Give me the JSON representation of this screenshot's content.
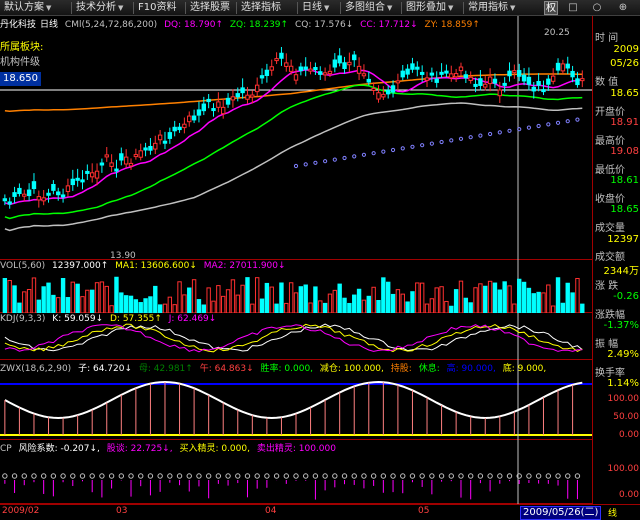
{
  "toolbar": {
    "items": [
      "默认方案",
      "技术分析",
      "F10资料",
      "选择股票",
      "选择指标",
      "日线",
      "多图组合",
      "图形叠加",
      "常用指标"
    ],
    "right_icons": [
      "权",
      "□",
      "○",
      "⊕"
    ]
  },
  "main": {
    "stock_name": "丹化科技",
    "period": "日线",
    "indicator": "CMl(5,24,72,86,200)",
    "dq": "DQ: 18.790↑",
    "zq": "ZQ: 18.239↑",
    "cq": "CQ: 17.576↓",
    "cc": "CC: 17.712↓",
    "zy": "ZY: 18.859↑",
    "sector_label": "所属板块:",
    "sector_value": "机构件级",
    "current_price": "18.650",
    "high_mark": "20.25",
    "low_mark": "13.90"
  },
  "vol": {
    "name": "VOL(5,60)",
    "v": "12397.000↑",
    "ma1": "MA1: 13606.600↓",
    "ma2": "MA2: 27011.900↓"
  },
  "kdj": {
    "name": "KDJ(9,3,3)",
    "k": "K: 59.059↓",
    "d": "D: 57.355↑",
    "j": "J: 62.469↓"
  },
  "zwx": {
    "name": "ZWX(18,6,2,90)",
    "zi": "子: 64.720↓",
    "mu": "母: 42.981↑",
    "wu": "午: 64.863↓",
    "shenglv": "胜率: 0.000,",
    "jiancang": "减仓: 100.000,",
    "chigu": "持股:",
    "linxi": "休息:",
    "gao": "高: 90.000,",
    "di": "底: 9.000,"
  },
  "cp": {
    "name": "CP",
    "risk": "风险系数: -0.207↓,",
    "guqiao": "股谈: 22.725↓,",
    "buy": "买入精灵: 0.000,",
    "sell": "卖出精灵: 100.000",
    "y100": "100.00",
    "y0": "0.00"
  },
  "info": {
    "time_label": "时 间",
    "year": "2009",
    "date": "05/26",
    "value_label": "数 值",
    "value": "18.65",
    "open_label": "开盘价",
    "open": "18.91",
    "high_label": "最高价",
    "high": "19.08",
    "low_label": "最低价",
    "low": "18.61",
    "close_label": "收盘价",
    "close": "18.65",
    "vol_label": "成交量",
    "vol": "12397",
    "amount_label": "成交额",
    "amount": "2344万",
    "change_label": "涨 跌",
    "change": "-0.26",
    "pct_label": "涨跌幅",
    "pct": "-1.37%",
    "amp_label": "振 幅",
    "amp": "2.49%",
    "turnover_label": "换手率",
    "turnover": "1.14%",
    "zwx_y1": "100.00",
    "zwx_y2": "50.00",
    "zwx_y3": "0.00"
  },
  "xaxis": {
    "labels": [
      "2009/02",
      "03",
      "04",
      "05"
    ],
    "cursor_date": "2009/05/26(二)",
    "line_label": "线"
  },
  "colors": {
    "up": "#ff3030",
    "down": "#00ffff",
    "yellow": "#ffff00",
    "magenta": "#ff00ff",
    "green": "#00ff00",
    "orange": "#ff8000"
  }
}
